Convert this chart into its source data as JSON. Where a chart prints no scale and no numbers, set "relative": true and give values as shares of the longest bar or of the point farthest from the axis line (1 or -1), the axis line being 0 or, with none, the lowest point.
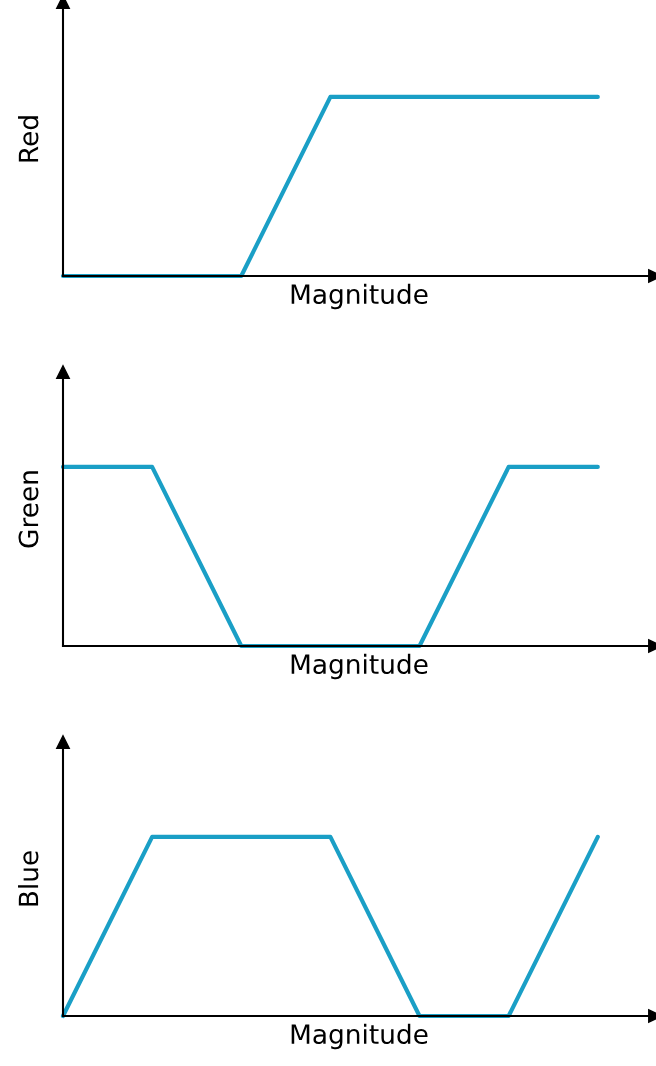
{
  "chart_data": [
    {
      "type": "line",
      "relative": true,
      "xlabel": "Magnitude",
      "ylabel": "Red",
      "categories": [
        null,
        null,
        null,
        null,
        null,
        null,
        null
      ],
      "series": [
        {
          "color": "#1a9fc6",
          "values": [
            0,
            0,
            0,
            1,
            1,
            1,
            1
          ]
        }
      ]
    },
    {
      "type": "line",
      "relative": true,
      "xlabel": "Magnitude",
      "ylabel": "Green",
      "categories": [
        null,
        null,
        null,
        null,
        null,
        null,
        null
      ],
      "series": [
        {
          "color": "#1a9fc6",
          "values": [
            1,
            1,
            0,
            0,
            0,
            1,
            1
          ]
        }
      ]
    },
    {
      "type": "line",
      "relative": true,
      "xlabel": "Magnitude",
      "ylabel": "Blue",
      "categories": [
        null,
        null,
        null,
        null,
        null,
        null,
        null
      ],
      "series": [
        {
          "color": "#1a9fc6",
          "values": [
            0,
            1,
            1,
            1,
            0,
            0,
            1
          ]
        }
      ]
    }
  ]
}
